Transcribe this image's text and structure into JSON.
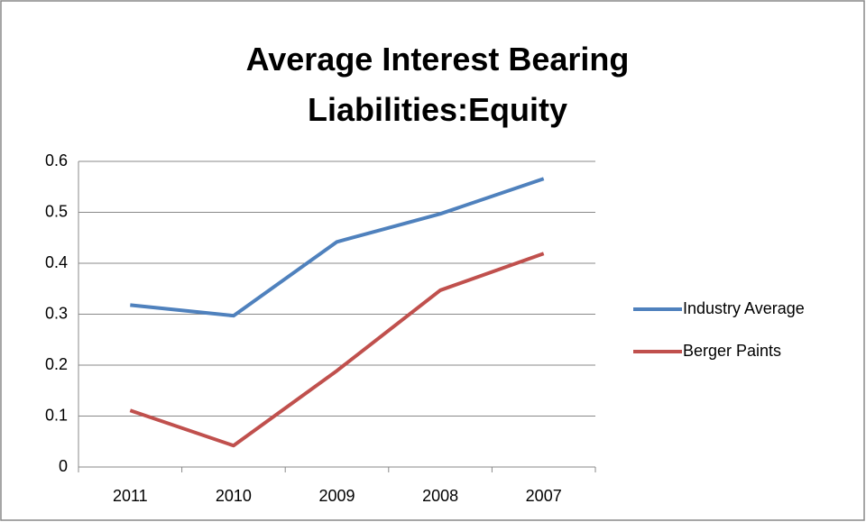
{
  "chart_data": {
    "type": "line",
    "title": "Average Interest Bearing Liabilities:Equity",
    "categories": [
      "2011",
      "2010",
      "2009",
      "2008",
      "2007"
    ],
    "series": [
      {
        "name": "Industry Average",
        "color": "#4f81bd",
        "values": [
          0.318,
          0.297,
          0.442,
          0.497,
          0.566
        ]
      },
      {
        "name": "Berger Paints",
        "color": "#c0504d",
        "values": [
          0.111,
          0.042,
          0.189,
          0.347,
          0.419
        ]
      }
    ],
    "ylim": [
      0,
      0.6
    ],
    "yticks": [
      0,
      0.1,
      0.2,
      0.3,
      0.4,
      0.5,
      0.6
    ],
    "grid": true,
    "legend": "right"
  }
}
